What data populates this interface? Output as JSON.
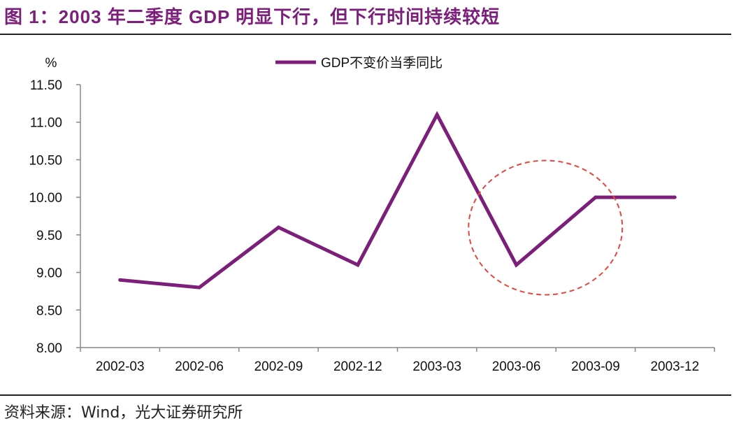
{
  "figure": {
    "title": "图 1：2003 年二季度 GDP 明显下行，但下行时间持续较短",
    "source": "资料来源：Wind，光大证券研究所"
  },
  "colors": {
    "series": "#7b1f7a",
    "highlight": "#e2473d",
    "axis": "#888888",
    "text": "#111111"
  },
  "chart_data": {
    "type": "line",
    "title": "",
    "ylabel": "%",
    "xlabel": "",
    "ylim": [
      8.0,
      11.5
    ],
    "yticks": [
      "8.00",
      "8.50",
      "9.00",
      "9.50",
      "10.00",
      "10.50",
      "11.00",
      "11.50"
    ],
    "categories": [
      "2002-03",
      "2002-06",
      "2002-09",
      "2002-12",
      "2003-03",
      "2003-06",
      "2003-09",
      "2003-12"
    ],
    "series": [
      {
        "name": "GDP不变价当季同比",
        "values": [
          8.9,
          8.8,
          9.6,
          9.1,
          11.1,
          9.1,
          10.0,
          10.0
        ]
      }
    ],
    "legend_position": "top-center",
    "grid": false,
    "annotation": {
      "type": "dashed-ellipse",
      "around": [
        "2003-06",
        "2003-09"
      ]
    }
  }
}
